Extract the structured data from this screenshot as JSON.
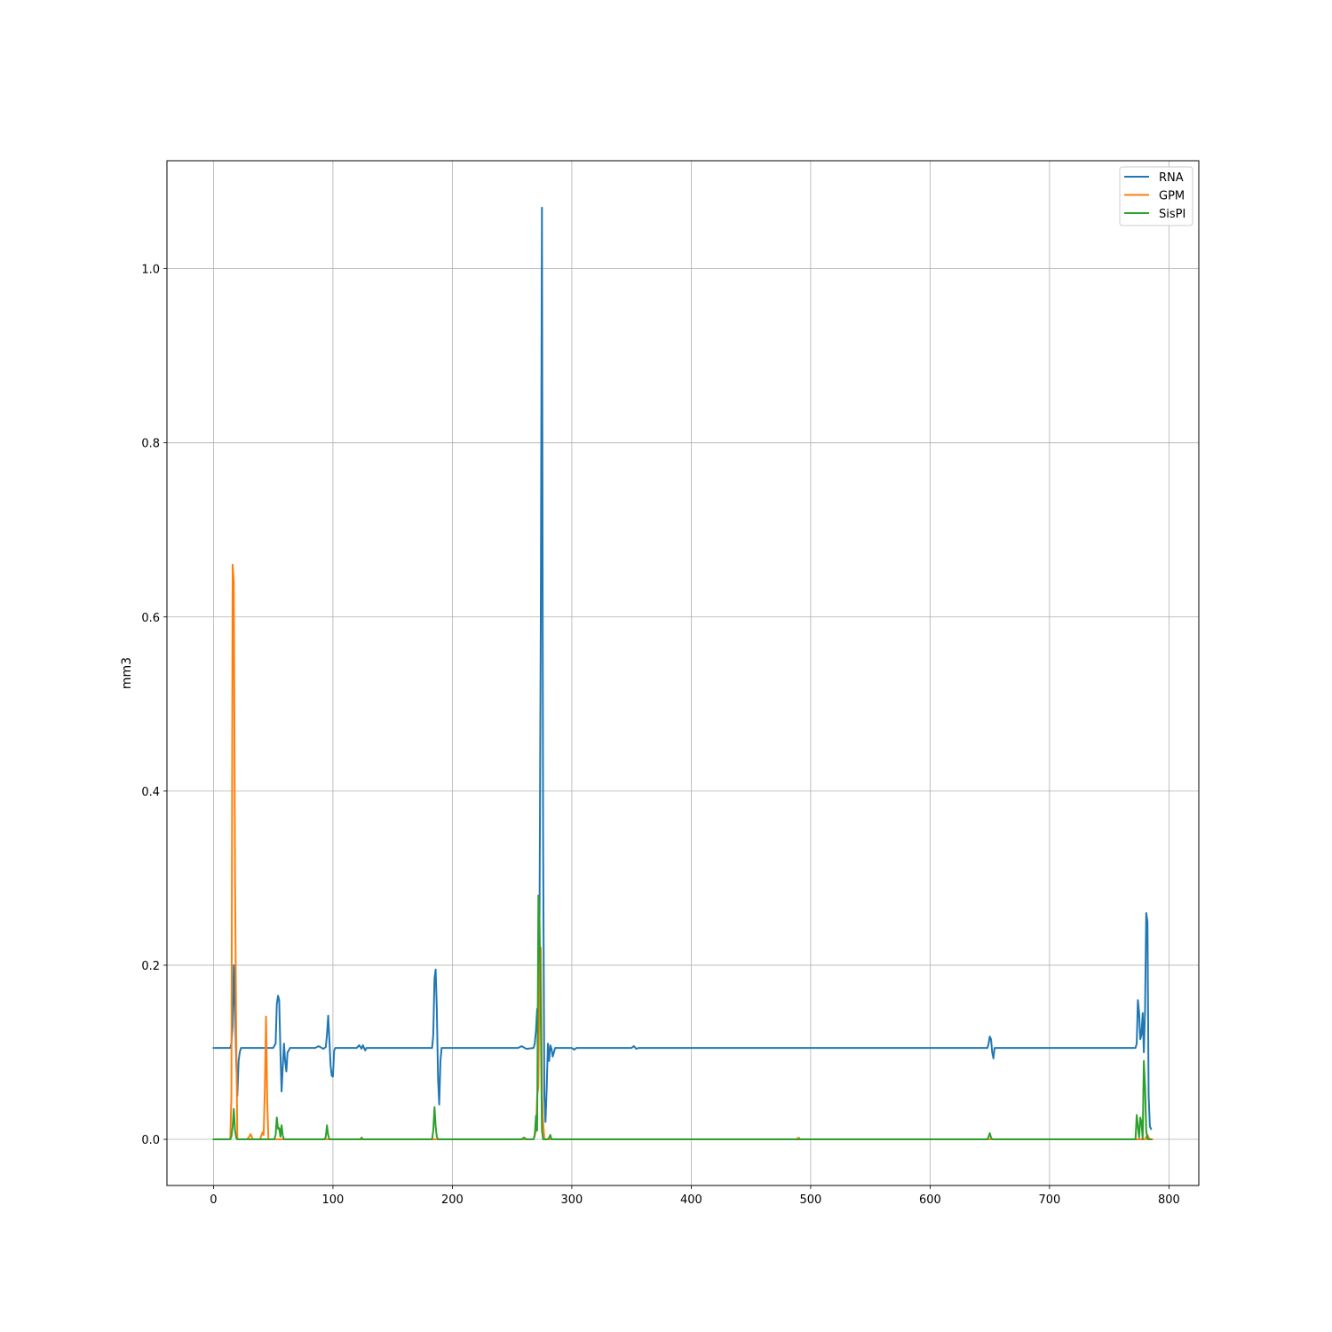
{
  "chart_data": {
    "type": "line",
    "title": "",
    "xlabel": "",
    "ylabel": "mm3",
    "xlim": [
      -39,
      825
    ],
    "ylim": [
      -0.053,
      1.124
    ],
    "xticks": [
      0,
      100,
      200,
      300,
      400,
      500,
      600,
      700,
      800
    ],
    "xtick_labels": [
      "0",
      "100",
      "200",
      "300",
      "400",
      "500",
      "600",
      "700",
      "800"
    ],
    "yticks": [
      0.0,
      0.2,
      0.4,
      0.6,
      0.8,
      1.0
    ],
    "ytick_labels": [
      "0.0",
      "0.2",
      "0.4",
      "0.6",
      "0.8",
      "1.0"
    ],
    "grid": true,
    "legend_position": "top-right",
    "series": [
      {
        "name": "RNA",
        "color": "#1f77b4",
        "x": [
          0,
          14,
          15,
          16,
          17,
          18,
          19,
          20,
          21,
          22,
          23,
          24,
          25,
          50,
          52,
          53,
          54,
          55,
          56,
          57,
          58,
          59,
          60,
          61,
          62,
          63,
          64,
          66,
          85,
          88,
          92,
          94,
          95,
          96,
          97,
          98,
          99,
          100,
          101,
          102,
          115,
          120,
          122,
          124,
          125,
          127,
          128,
          183,
          184,
          185,
          186,
          187,
          188,
          189,
          190,
          191,
          192,
          255,
          258,
          262,
          268,
          269,
          270,
          271,
          272,
          273,
          274,
          275,
          276,
          277,
          278,
          279,
          280,
          281,
          282,
          283,
          284,
          285,
          286,
          287,
          288,
          300,
          302,
          304,
          350,
          352,
          354,
          356,
          358,
          648,
          649,
          650,
          651,
          652,
          653,
          654,
          655,
          772,
          773,
          774,
          775,
          776,
          777,
          778,
          779,
          780,
          781,
          782,
          783,
          784,
          785
        ],
        "y": [
          0.105,
          0.105,
          0.11,
          0.13,
          0.2,
          0.15,
          0.09,
          0.05,
          0.09,
          0.1,
          0.105,
          0.105,
          0.105,
          0.105,
          0.11,
          0.155,
          0.165,
          0.16,
          0.1,
          0.055,
          0.085,
          0.11,
          0.09,
          0.078,
          0.1,
          0.102,
          0.105,
          0.105,
          0.105,
          0.107,
          0.104,
          0.106,
          0.12,
          0.142,
          0.115,
          0.085,
          0.073,
          0.072,
          0.102,
          0.105,
          0.105,
          0.105,
          0.108,
          0.104,
          0.108,
          0.102,
          0.105,
          0.105,
          0.12,
          0.185,
          0.195,
          0.15,
          0.07,
          0.04,
          0.09,
          0.105,
          0.105,
          0.105,
          0.107,
          0.104,
          0.105,
          0.11,
          0.125,
          0.15,
          0.14,
          0.26,
          0.6,
          1.07,
          0.35,
          0.05,
          0.02,
          0.06,
          0.11,
          0.09,
          0.108,
          0.104,
          0.095,
          0.1,
          0.105,
          0.105,
          0.105,
          0.105,
          0.103,
          0.105,
          0.105,
          0.107,
          0.104,
          0.105,
          0.105,
          0.105,
          0.11,
          0.118,
          0.115,
          0.1,
          0.093,
          0.105,
          0.105,
          0.105,
          0.11,
          0.16,
          0.145,
          0.115,
          0.12,
          0.145,
          0.1,
          0.15,
          0.26,
          0.25,
          0.05,
          0.015,
          0.012
        ],
        "label_x": 0
      },
      {
        "name": "GPM",
        "color": "#ff7f0e",
        "x": [
          0,
          14,
          15,
          16,
          17,
          18,
          19,
          20,
          21,
          22,
          28,
          30,
          31,
          32,
          33,
          39,
          40,
          41,
          42,
          43,
          44,
          45,
          46,
          47,
          265,
          268,
          270,
          271,
          272,
          273,
          274,
          275,
          276,
          277,
          278,
          279,
          280,
          488,
          490,
          491,
          492,
          780,
          781,
          782,
          783,
          784,
          785,
          786
        ],
        "y": [
          0.0,
          0.0,
          0.05,
          0.66,
          0.64,
          0.3,
          0.12,
          0.0,
          0.0,
          0.0,
          0.0,
          0.003,
          0.006,
          0.003,
          0.0,
          0.0,
          0.004,
          0.008,
          0.005,
          0.06,
          0.141,
          0.04,
          0.0,
          0.0,
          0.0,
          0.0,
          0.01,
          0.05,
          0.06,
          0.2,
          0.22,
          0.05,
          0.02,
          0.0,
          0.0,
          0.0,
          0.0,
          0.0,
          0.002,
          0.0,
          0.0,
          0.0,
          0.003,
          0.005,
          0.002,
          0.0,
          0.0,
          0.0
        ]
      },
      {
        "name": "SisPI",
        "color": "#2ca02c",
        "x": [
          0,
          14,
          15,
          16,
          17,
          18,
          19,
          20,
          21,
          51,
          52,
          53,
          54,
          55,
          56,
          57,
          58,
          59,
          60,
          61,
          93,
          94,
          95,
          96,
          97,
          123,
          124,
          125,
          183,
          184,
          185,
          186,
          187,
          188,
          258,
          260,
          262,
          268,
          269,
          270,
          271,
          272,
          273,
          274,
          275,
          276,
          277,
          280,
          281,
          282,
          283,
          284,
          648,
          649,
          650,
          651,
          652,
          772,
          773,
          774,
          775,
          776,
          777,
          778,
          779,
          780,
          781,
          782,
          783,
          784,
          785
        ],
        "y": [
          0.0,
          0.0,
          0.003,
          0.015,
          0.035,
          0.01,
          0.002,
          0.0,
          0.0,
          0.0,
          0.005,
          0.025,
          0.012,
          0.013,
          0.003,
          0.016,
          0.004,
          0.0,
          0.0,
          0.0,
          0.0,
          0.003,
          0.016,
          0.005,
          0.0,
          0.0,
          0.002,
          0.0,
          0.0,
          0.01,
          0.037,
          0.015,
          0.003,
          0.0,
          0.0,
          0.002,
          0.0,
          0.0,
          0.005,
          0.027,
          0.01,
          0.28,
          0.25,
          0.14,
          0.01,
          0.0,
          0.0,
          0.0,
          0.002,
          0.005,
          0.0,
          0.0,
          0.0,
          0.003,
          0.007,
          0.002,
          0.0,
          0.0,
          0.028,
          0.015,
          0.002,
          0.025,
          0.02,
          0.0,
          0.09,
          0.06,
          0.01,
          0.0,
          0.0,
          0.0,
          0.0
        ]
      }
    ]
  }
}
